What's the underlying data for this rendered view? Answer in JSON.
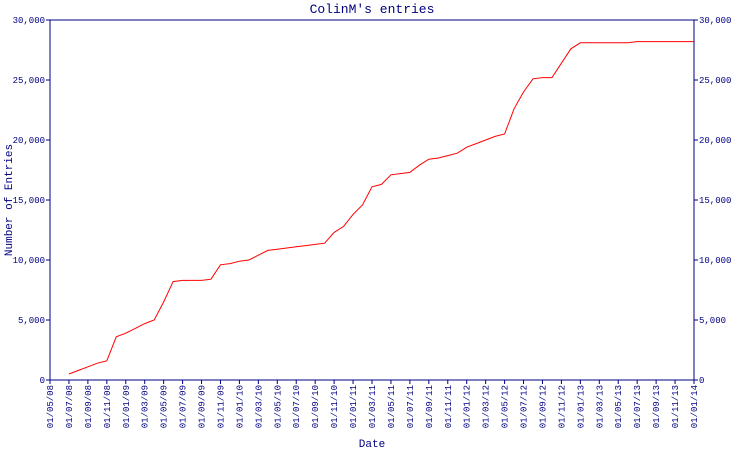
{
  "chart_data": {
    "type": "line",
    "title": "ColinM's entries",
    "x_label": "Date",
    "y_label": "Number of Entries",
    "x": [
      "01/07/08",
      "01/08/08",
      "01/09/08",
      "01/10/08",
      "01/11/08",
      "01/12/08",
      "01/01/09",
      "01/02/09",
      "01/03/09",
      "01/04/09",
      "01/05/09",
      "01/06/09",
      "01/07/09",
      "01/08/09",
      "01/09/09",
      "01/10/09",
      "01/11/09",
      "01/12/09",
      "01/01/10",
      "01/02/10",
      "01/03/10",
      "01/04/10",
      "01/05/10",
      "01/06/10",
      "01/07/10",
      "01/08/10",
      "01/09/10",
      "01/10/10",
      "01/11/10",
      "01/12/10",
      "01/01/11",
      "01/02/11",
      "01/03/11",
      "01/04/11",
      "01/05/11",
      "01/06/11",
      "01/07/11",
      "01/08/11",
      "01/09/11",
      "01/10/11",
      "01/11/11",
      "01/12/11",
      "01/01/12",
      "01/02/12",
      "01/03/12",
      "01/04/12",
      "01/05/12",
      "01/06/12",
      "01/07/12",
      "01/08/12",
      "01/09/12",
      "01/10/12",
      "01/11/12",
      "01/12/12",
      "01/01/13",
      "01/02/13",
      "01/03/13",
      "01/04/13",
      "01/05/13",
      "01/06/13",
      "01/07/13",
      "01/08/13",
      "01/09/13",
      "01/10/13",
      "01/11/13",
      "01/12/13",
      "01/01/14"
    ],
    "series": [
      {
        "name": "Entries",
        "color": "#ff0000",
        "values": [
          500,
          800,
          1100,
          1400,
          1600,
          3600,
          3900,
          4300,
          4700,
          5000,
          6500,
          8200,
          8300,
          8300,
          8300,
          8400,
          9600,
          9700,
          9900,
          10000,
          10400,
          10800,
          10900,
          11000,
          11100,
          11200,
          11300,
          11400,
          12300,
          12800,
          13800,
          14600,
          16100,
          16300,
          17100,
          17200,
          17300,
          17900,
          18400,
          18500,
          18700,
          18900,
          19400,
          19700,
          20000,
          20300,
          20500,
          22600,
          24000,
          25100,
          25200,
          25200,
          26400,
          27600,
          28100,
          28100,
          28100,
          28100,
          28100,
          28100,
          28200,
          28200,
          28200,
          28200,
          28200,
          28200,
          28200
        ]
      }
    ],
    "xlim": [
      "01/05/08",
      "01/01/14"
    ],
    "xticks": [
      "01/05/08",
      "01/07/08",
      "01/09/08",
      "01/11/08",
      "01/01/09",
      "01/03/09",
      "01/05/09",
      "01/07/09",
      "01/09/09",
      "01/11/09",
      "01/01/10",
      "01/03/10",
      "01/05/10",
      "01/07/10",
      "01/09/10",
      "01/11/10",
      "01/01/11",
      "01/03/11",
      "01/05/11",
      "01/07/11",
      "01/09/11",
      "01/11/11",
      "01/01/12",
      "01/03/12",
      "01/05/12",
      "01/07/12",
      "01/09/12",
      "01/11/12",
      "01/01/13",
      "01/03/13",
      "01/05/13",
      "01/07/13",
      "01/09/13",
      "01/11/13",
      "01/01/14"
    ],
    "ylim": [
      0,
      30000
    ],
    "yticks": [
      0,
      {
        "value": 5000,
        "label": "5,000"
      },
      {
        "value": 10000,
        "label": "10,000"
      },
      {
        "value": 15000,
        "label": "15,000"
      },
      {
        "value": 20000,
        "label": "20,000"
      },
      {
        "value": 25000,
        "label": "25,000"
      },
      {
        "value": 30000,
        "label": "30,000"
      }
    ],
    "y2lim": [
      0,
      30000
    ],
    "y2ticks": [
      0,
      {
        "value": 5000,
        "label": "5,000"
      },
      {
        "value": 10000,
        "label": "10,000"
      },
      {
        "value": 15000,
        "label": "15,000"
      },
      {
        "value": 20000,
        "label": "20,000"
      },
      {
        "value": 25000,
        "label": "25,000"
      },
      {
        "value": 30000,
        "label": "30,000"
      }
    ],
    "axis_color": "#000080",
    "grid": false
  }
}
